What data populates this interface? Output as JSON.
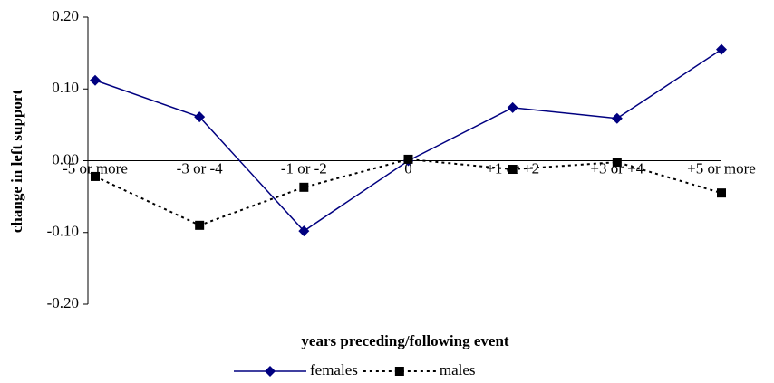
{
  "chart_data": {
    "type": "line",
    "y_label": "change in left support",
    "x_label": "years preceding/following event",
    "categories": [
      "-5 or more",
      "-3 or -4",
      "-1 or -2",
      "0",
      "+1 or +2",
      "+3 or +4",
      "+5 or more"
    ],
    "series": [
      {
        "name": "females",
        "color": "#000080",
        "marker": "diamond",
        "dash": "solid",
        "values": [
          0.112,
          0.061,
          -0.098,
          0.0,
          0.074,
          0.059,
          0.155
        ]
      },
      {
        "name": "males",
        "color": "#000000",
        "marker": "square",
        "dash": "dotted",
        "values": [
          -0.022,
          -0.09,
          -0.037,
          0.002,
          -0.012,
          -0.002,
          -0.045
        ]
      }
    ],
    "ylim": [
      -0.2,
      0.2
    ],
    "yticks": [
      {
        "value": -0.2,
        "label": "-0.20"
      },
      {
        "value": -0.1,
        "label": "-0.10"
      },
      {
        "value": 0,
        "label": "0.00"
      },
      {
        "value": 0.1,
        "label": "0.10"
      },
      {
        "value": 0.2,
        "label": "0.20"
      }
    ]
  }
}
